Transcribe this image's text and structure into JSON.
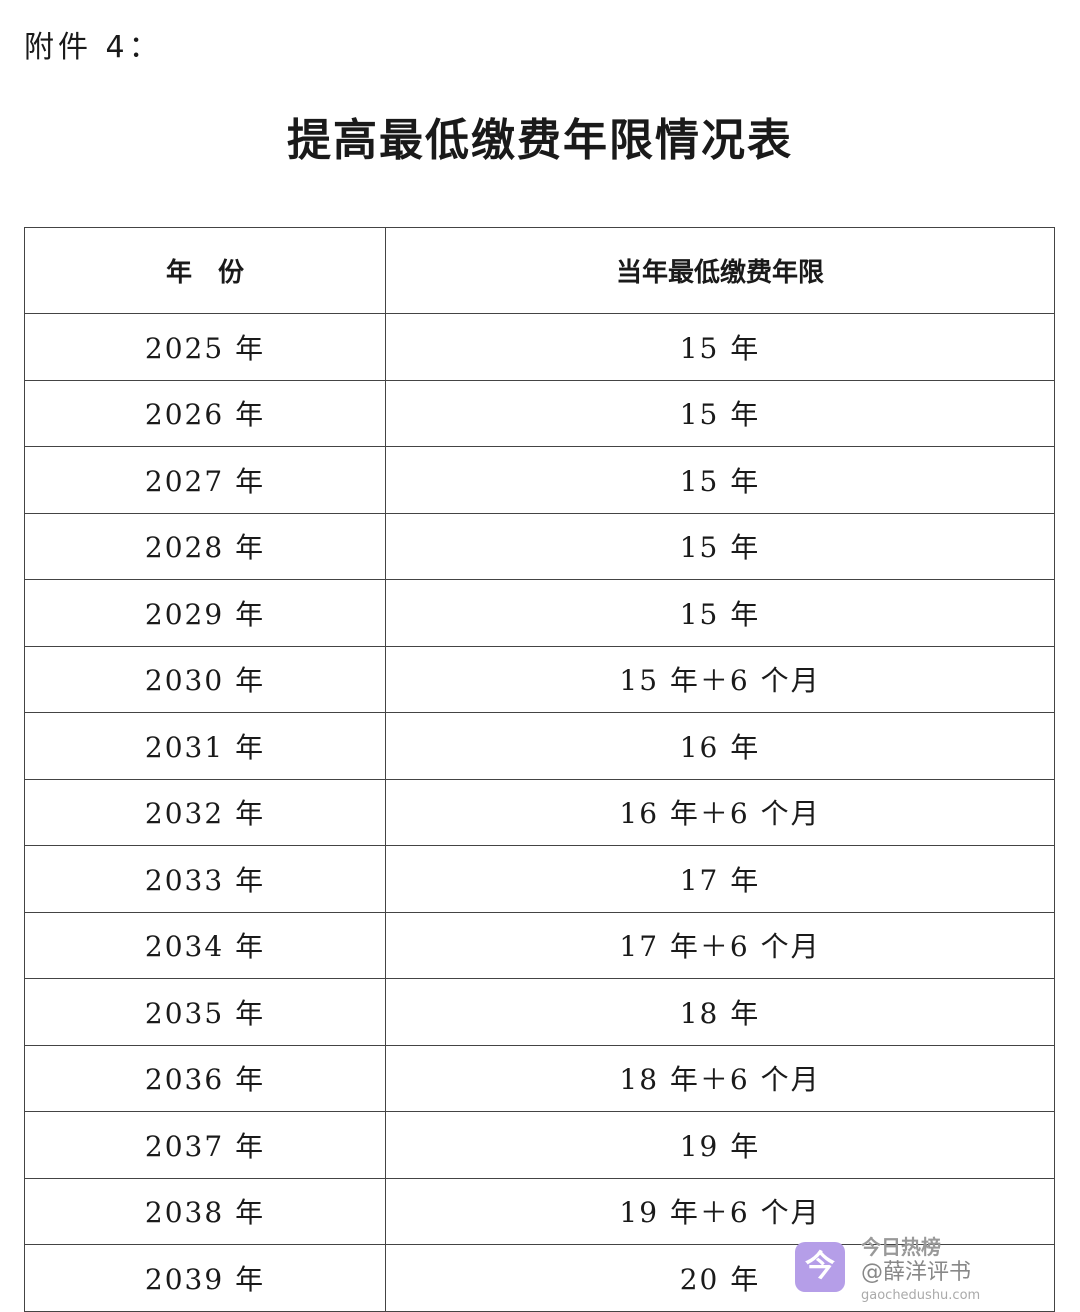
{
  "attachment_label": "附件 4：",
  "title": "提高最低缴费年限情况表",
  "table": {
    "headers": [
      "年　份",
      "当年最低缴费年限"
    ],
    "rows": [
      [
        "2025 年",
        "15 年"
      ],
      [
        "2026 年",
        "15 年"
      ],
      [
        "2027 年",
        "15 年"
      ],
      [
        "2028 年",
        "15 年"
      ],
      [
        "2029 年",
        "15 年"
      ],
      [
        "2030 年",
        "15 年＋6 个月"
      ],
      [
        "2031 年",
        "16 年"
      ],
      [
        "2032 年",
        "16 年＋6 个月"
      ],
      [
        "2033 年",
        "17 年"
      ],
      [
        "2034 年",
        "17 年＋6 个月"
      ],
      [
        "2035 年",
        "18 年"
      ],
      [
        "2036 年",
        "18 年＋6 个月"
      ],
      [
        "2037 年",
        "19 年"
      ],
      [
        "2038 年",
        "19 年＋6 个月"
      ],
      [
        "2039 年",
        "20 年"
      ]
    ]
  },
  "watermark": {
    "logo_char": "今",
    "app_name": "今日热榜",
    "url": "gaochedushu.com",
    "user": "@薛洋评书",
    "logo_color": "#b59ee8"
  }
}
